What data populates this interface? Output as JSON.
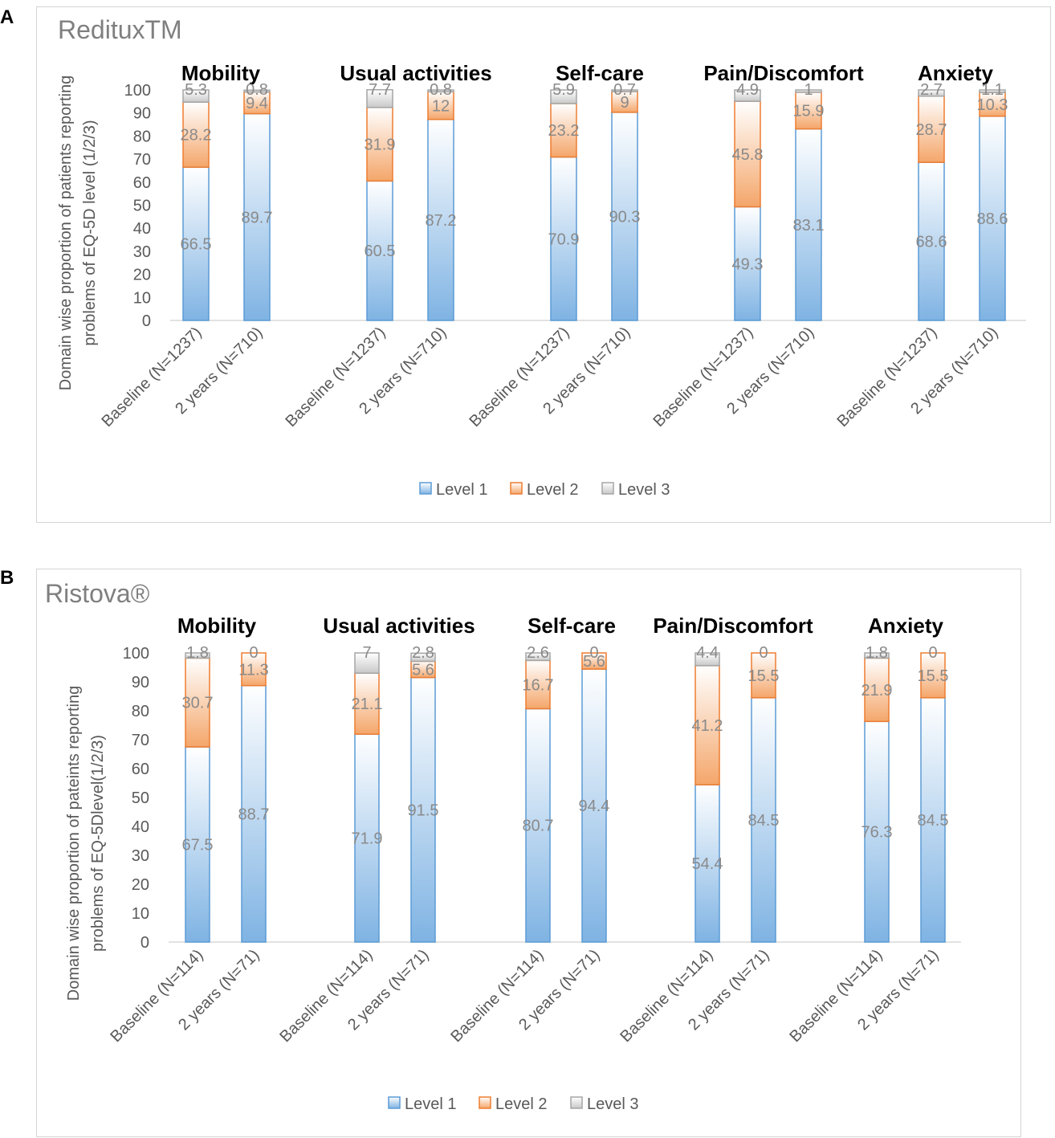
{
  "chart_data": [
    {
      "type": "bar",
      "stacked": true,
      "panel_letter": "A",
      "title": "RedituxTM",
      "ylabel_lines": [
        "Domain wise proportion of patients reporting",
        "problems of EQ-5D level (1/2/3)"
      ],
      "ylim": [
        0,
        100
      ],
      "yticks": [
        "0",
        "10",
        "20",
        "30",
        "40",
        "50",
        "60",
        "70",
        "80",
        "90",
        "100"
      ],
      "groups": [
        "Mobility",
        "Usual activities",
        "Self-care",
        "Pain/Discomfort",
        "Anxiety"
      ],
      "categories": [
        "Baseline (N=1237)",
        "2 years (N=710)"
      ],
      "series": [
        {
          "name": "Level 1",
          "values": [
            [
              66.5,
              89.7
            ],
            [
              60.5,
              87.2
            ],
            [
              70.9,
              90.3
            ],
            [
              49.3,
              83.1
            ],
            [
              68.6,
              88.6
            ]
          ]
        },
        {
          "name": "Level 2",
          "values": [
            [
              28.2,
              9.4
            ],
            [
              31.9,
              12
            ],
            [
              23.2,
              9
            ],
            [
              45.8,
              15.9
            ],
            [
              28.7,
              10.3
            ]
          ]
        },
        {
          "name": "Level 3",
          "values": [
            [
              5.3,
              0.8
            ],
            [
              7.7,
              0.8
            ],
            [
              5.9,
              0.7
            ],
            [
              4.9,
              1
            ],
            [
              2.7,
              1.1
            ]
          ]
        }
      ],
      "legend": [
        "Level 1",
        "Level 2",
        "Level 3"
      ],
      "legend_position": "bottom"
    },
    {
      "type": "bar",
      "stacked": true,
      "panel_letter": "B",
      "title": "Ristova®",
      "ylabel_lines": [
        "Domain wise proportion of pateints reporting",
        "problems of EQ-5Dlevel(1/2/3)"
      ],
      "ylim": [
        0,
        100
      ],
      "yticks": [
        "0",
        "10",
        "20",
        "30",
        "40",
        "50",
        "60",
        "70",
        "80",
        "90",
        "100"
      ],
      "groups": [
        "Mobility",
        "Usual activities",
        "Self-care",
        "Pain/Discomfort",
        "Anxiety"
      ],
      "categories": [
        "Baseline (N=114)",
        "2 years (N=71)"
      ],
      "series": [
        {
          "name": "Level 1",
          "values": [
            [
              67.5,
              88.7
            ],
            [
              71.9,
              91.5
            ],
            [
              80.7,
              94.4
            ],
            [
              54.4,
              84.5
            ],
            [
              76.3,
              84.5
            ]
          ]
        },
        {
          "name": "Level 2",
          "values": [
            [
              30.7,
              11.3
            ],
            [
              21.1,
              5.6
            ],
            [
              16.7,
              5.6
            ],
            [
              41.2,
              15.5
            ],
            [
              21.9,
              15.5
            ]
          ]
        },
        {
          "name": "Level 3",
          "values": [
            [
              1.8,
              0
            ],
            [
              7,
              2.8
            ],
            [
              2.6,
              0
            ],
            [
              4.4,
              0
            ],
            [
              1.8,
              0
            ]
          ]
        }
      ],
      "legend": [
        "Level 1",
        "Level 2",
        "Level 3"
      ],
      "legend_position": "bottom"
    }
  ],
  "colors": {
    "level1_top": "#ffffff",
    "level1_bottom": "#7fb3e3",
    "level1_stroke": "#5b9bd5",
    "level2_top": "#ffffff",
    "level2_bottom": "#f4a66a",
    "level2_stroke": "#ed7d31",
    "level3_top": "#ffffff",
    "level3_bottom": "#c8c8c8",
    "level3_stroke": "#a5a5a5"
  }
}
